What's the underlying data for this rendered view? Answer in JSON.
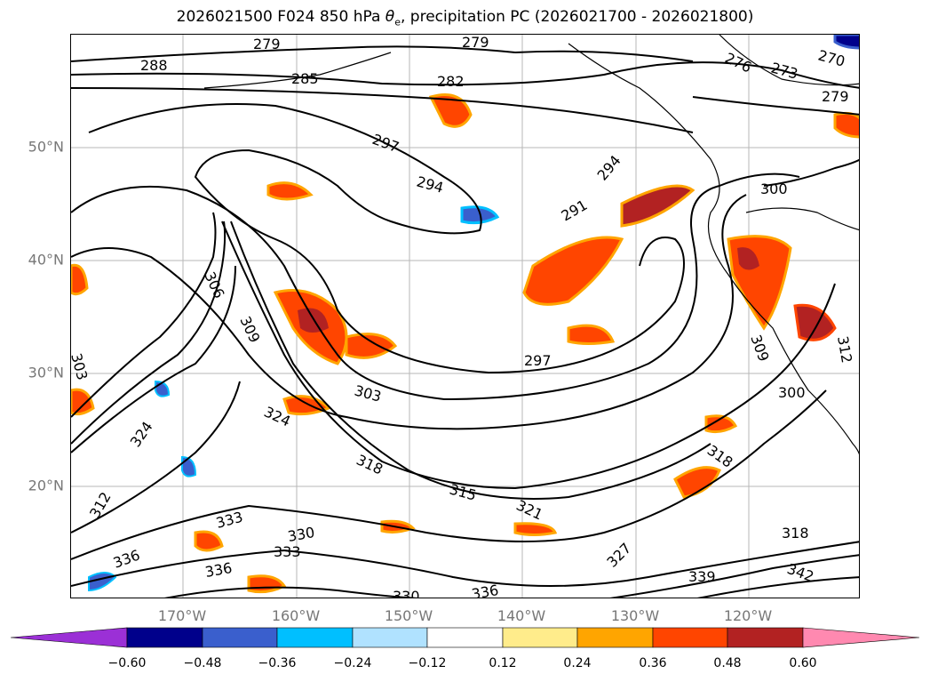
{
  "title": {
    "prefix": "2026021500 F024 850 hPa ",
    "symbol": "θ",
    "subscript": "e",
    "suffix": ", precipitation PC (2026021700 - 2026021800)"
  },
  "axes": {
    "lat_labels": [
      "50°N",
      "40°N",
      "30°N",
      "20°N"
    ],
    "lon_labels": [
      "170°W",
      "160°W",
      "150°W",
      "140°W",
      "130°W",
      "120°W"
    ]
  },
  "colorbar": {
    "ticks": [
      "−0.60",
      "−0.48",
      "−0.36",
      "−0.24",
      "−0.12",
      "0.12",
      "0.24",
      "0.36",
      "0.48",
      "0.60"
    ],
    "colors": [
      "#9b30d6",
      "#00008b",
      "#3a5fcd",
      "#00bfff",
      "#b0e2ff",
      "#ffffff",
      "#ffec8b",
      "#ffa500",
      "#ff4500",
      "#b22222",
      "#ff89b0"
    ],
    "extend": "both"
  },
  "contour_labels": [
    "279",
    "279",
    "288",
    "285",
    "282",
    "297",
    "294",
    "294",
    "291",
    "276",
    "273",
    "270",
    "279",
    "300",
    "306",
    "309",
    "297",
    "303",
    "303",
    "300",
    "324",
    "318",
    "315",
    "321",
    "309",
    "333",
    "330",
    "333",
    "336",
    "330",
    "336",
    "327",
    "339",
    "336",
    "318",
    "318",
    "342",
    "312",
    "324",
    "312"
  ],
  "map_features": {
    "precip_colors": {
      "orange": "#ff4500",
      "red": "#b22222",
      "light_orange": "#ffa500",
      "yellow": "#ffec8b",
      "blue": "#3a5fcd",
      "lightblue": "#00bfff"
    },
    "contour_color": "#000000",
    "coastline_color": "#000000",
    "gridline_color": "#999999"
  }
}
